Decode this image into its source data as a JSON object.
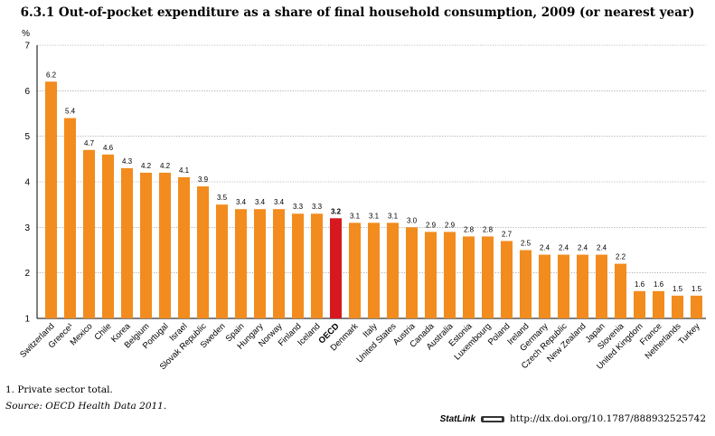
{
  "chart_data": {
    "type": "bar",
    "title": "6.3.1 Out-of-pocket expenditure as a share of final household consumption, 2009 (or nearest year)",
    "ylabel": "%",
    "xlabel": "",
    "ylim": [
      1,
      7
    ],
    "yticks": [
      1,
      2,
      3,
      4,
      5,
      6,
      7
    ],
    "categories": [
      "Switzerland",
      "Greece¹",
      "Mexico",
      "Chile",
      "Korea",
      "Belgium",
      "Portugal",
      "Israel",
      "Slovak Republic",
      "Sweden",
      "Spain",
      "Hungary",
      "Norway",
      "Finland",
      "Iceland",
      "OECD",
      "Denmark",
      "Italy",
      "United States",
      "Austria",
      "Canada",
      "Australia",
      "Estonia",
      "Luxembourg",
      "Poland",
      "Ireland",
      "Germany",
      "Czech Republic",
      "New Zealand",
      "Japan",
      "Slovenia",
      "United Kingdom",
      "France",
      "Netherlands",
      "Turkey"
    ],
    "values": [
      6.2,
      5.4,
      4.7,
      4.6,
      4.3,
      4.2,
      4.2,
      4.1,
      3.9,
      3.5,
      3.4,
      3.4,
      3.4,
      3.3,
      3.3,
      3.2,
      3.1,
      3.1,
      3.1,
      3.0,
      2.9,
      2.9,
      2.8,
      2.8,
      2.7,
      2.5,
      2.4,
      2.4,
      2.4,
      2.4,
      2.2,
      1.6,
      1.6,
      1.5,
      1.5
    ],
    "value_labels": [
      "6.2",
      "5.4",
      "4.7",
      "4.6",
      "4.3",
      "4.2",
      "4.2",
      "4.1",
      "3.9",
      "3.5",
      "3.4",
      "3.4",
      "3.4",
      "3.3",
      "3.3",
      "3.2",
      "3.1",
      "3.1",
      "3.1",
      "3.0",
      "2.9",
      "2.9",
      "2.8",
      "2.8",
      "2.7",
      "2.5",
      "2.4",
      "2.4",
      "2.4",
      "2.4",
      "2.2",
      "1.6",
      "1.6",
      "1.5",
      "1.5"
    ],
    "highlight": "OECD",
    "colors": {
      "bar": "#f28c1e",
      "highlight": "#d7191f",
      "gridline": "#7f7f7f"
    }
  },
  "footnote": "1.  Private sector total.",
  "source": "Source:  OECD Health Data 2011.",
  "statlink": {
    "label": "StatLink",
    "url": "http://dx.doi.org/10.1787/888932525742"
  }
}
